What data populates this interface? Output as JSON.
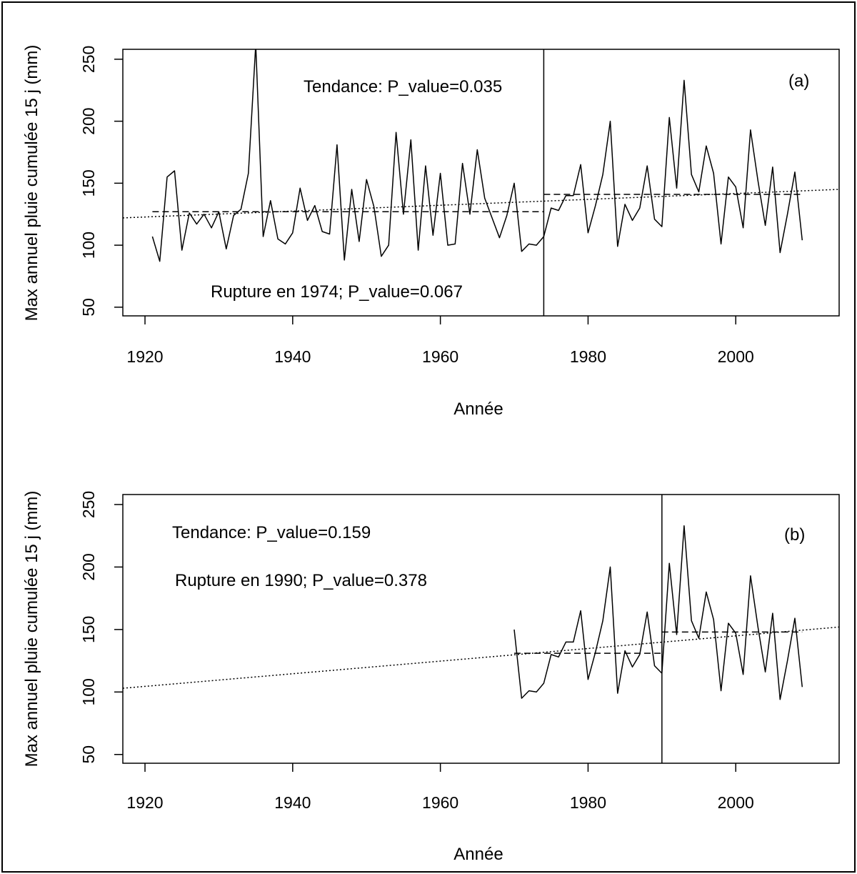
{
  "chart_data": [
    {
      "type": "line",
      "panel_label": "(a)",
      "xlabel": "Année",
      "ylabel": "Max annuel pluie cumulée 15 j (mm)",
      "xlim": [
        1917,
        2014
      ],
      "ylim": [
        43,
        258
      ],
      "xticks": [
        1920,
        1940,
        1960,
        1980,
        2000
      ],
      "yticks": [
        50,
        100,
        150,
        200,
        250
      ],
      "annotations": {
        "trend": "Tendance: P_value=0.035",
        "rupture": "Rupture en 1974; P_value=0.067"
      },
      "breakpoint_year": 1974,
      "series": [
        {
          "name": "observed",
          "style": "solid",
          "x": [
            1921,
            1922,
            1923,
            1924,
            1925,
            1926,
            1927,
            1928,
            1929,
            1930,
            1931,
            1932,
            1933,
            1934,
            1935,
            1936,
            1937,
            1938,
            1939,
            1940,
            1941,
            1942,
            1943,
            1944,
            1945,
            1946,
            1947,
            1948,
            1949,
            1950,
            1951,
            1952,
            1953,
            1954,
            1955,
            1956,
            1957,
            1958,
            1959,
            1960,
            1961,
            1962,
            1963,
            1964,
            1965,
            1966,
            1967,
            1968,
            1969,
            1970,
            1971,
            1972,
            1973,
            1974,
            1975,
            1976,
            1977,
            1978,
            1979,
            1980,
            1981,
            1982,
            1983,
            1984,
            1985,
            1986,
            1987,
            1988,
            1989,
            1990,
            1991,
            1992,
            1993,
            1994,
            1995,
            1996,
            1997,
            1998,
            1999,
            2000,
            2001,
            2002,
            2003,
            2004,
            2005,
            2006,
            2007,
            2008,
            2009
          ],
          "values": [
            107,
            87,
            155,
            160,
            96,
            126,
            117,
            125,
            114,
            127,
            97,
            124,
            129,
            158,
            262,
            107,
            136,
            105,
            101,
            110,
            146,
            120,
            132,
            111,
            109,
            181,
            88,
            145,
            103,
            153,
            131,
            91,
            100,
            191,
            125,
            185,
            96,
            164,
            108,
            158,
            100,
            101,
            166,
            125,
            177,
            138,
            122,
            106,
            124,
            150,
            95,
            101,
            100,
            107,
            130,
            128,
            140,
            140,
            165,
            110,
            132,
            157,
            200,
            99,
            133,
            120,
            130,
            164,
            121,
            115,
            203,
            146,
            233,
            157,
            143,
            180,
            158,
            101,
            155,
            147,
            114,
            193,
            152,
            116,
            163,
            94,
            125,
            159,
            104
          ]
        },
        {
          "name": "segment mean before 1974",
          "style": "dashed",
          "x": [
            1921,
            1974
          ],
          "values": [
            127,
            127
          ]
        },
        {
          "name": "segment mean after 1974",
          "style": "dashed",
          "x": [
            1974,
            2009
          ],
          "values": [
            141,
            141
          ]
        },
        {
          "name": "linear trend",
          "style": "dotted",
          "x": [
            1917,
            2014
          ],
          "values": [
            122,
            145
          ]
        }
      ]
    },
    {
      "type": "line",
      "panel_label": "(b)",
      "xlabel": "Année",
      "ylabel": "Max annuel pluie cumulée 15 j (mm)",
      "xlim": [
        1917,
        2014
      ],
      "ylim": [
        43,
        258
      ],
      "xticks": [
        1920,
        1940,
        1960,
        1980,
        2000
      ],
      "yticks": [
        50,
        100,
        150,
        200,
        250
      ],
      "annotations": {
        "trend": "Tendance: P_value=0.159",
        "rupture": "Rupture en 1990; P_value=0.378"
      },
      "breakpoint_year": 1990,
      "series": [
        {
          "name": "observed",
          "style": "solid",
          "x": [
            1970,
            1971,
            1972,
            1973,
            1974,
            1975,
            1976,
            1977,
            1978,
            1979,
            1980,
            1981,
            1982,
            1983,
            1984,
            1985,
            1986,
            1987,
            1988,
            1989,
            1990,
            1991,
            1992,
            1993,
            1994,
            1995,
            1996,
            1997,
            1998,
            1999,
            2000,
            2001,
            2002,
            2003,
            2004,
            2005,
            2006,
            2007,
            2008,
            2009
          ],
          "values": [
            150,
            95,
            101,
            100,
            107,
            130,
            128,
            140,
            140,
            165,
            110,
            132,
            157,
            200,
            99,
            133,
            120,
            130,
            164,
            121,
            115,
            203,
            146,
            233,
            157,
            143,
            180,
            158,
            101,
            155,
            147,
            114,
            193,
            152,
            116,
            163,
            94,
            125,
            159,
            104
          ]
        },
        {
          "name": "segment mean before 1990",
          "style": "dashed",
          "x": [
            1970,
            1990
          ],
          "values": [
            131,
            131
          ]
        },
        {
          "name": "segment mean after 1990",
          "style": "dashed",
          "x": [
            1990,
            2009
          ],
          "values": [
            148,
            148
          ]
        },
        {
          "name": "linear trend",
          "style": "dotted",
          "x": [
            1917,
            2014
          ],
          "values": [
            103,
            152
          ]
        }
      ]
    }
  ]
}
